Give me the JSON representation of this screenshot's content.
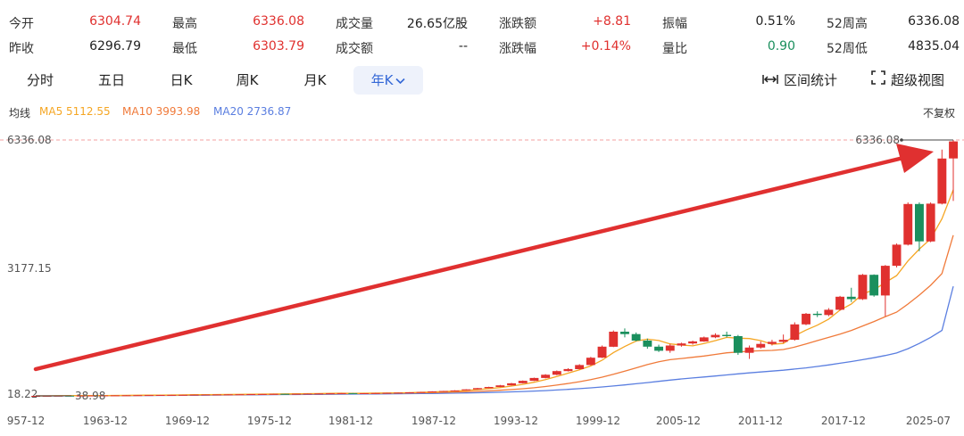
{
  "stats": [
    {
      "label": "今开",
      "value": "6304.74",
      "color": "up"
    },
    {
      "label": "最高",
      "value": "6336.08",
      "color": "up"
    },
    {
      "label": "成交量",
      "value": "26.65亿股",
      "color": "dark"
    },
    {
      "label": "涨跌额",
      "value": "+8.81",
      "color": "up"
    },
    {
      "label": "振幅",
      "value": "0.51%",
      "color": "dark"
    },
    {
      "label": "52周高",
      "value": "6336.08",
      "color": "dark"
    },
    {
      "label": "昨收",
      "value": "6296.79",
      "color": "dark"
    },
    {
      "label": "最低",
      "value": "6303.79",
      "color": "up"
    },
    {
      "label": "成交额",
      "value": "--",
      "color": "dark"
    },
    {
      "label": "涨跌幅",
      "value": "+0.14%",
      "color": "up"
    },
    {
      "label": "量比",
      "value": "0.90",
      "color": "green"
    },
    {
      "label": "52周低",
      "value": "4835.04",
      "color": "dark"
    }
  ],
  "tabs": [
    "分时",
    "五日",
    "日K",
    "周K",
    "月K",
    "年K"
  ],
  "active_tab": "年K",
  "tools": {
    "range_stats": "区间统计",
    "super_view": "超级视图"
  },
  "ma": {
    "label": "均线",
    "ma5": "MA5 5112.55",
    "ma10": "MA10 3993.98",
    "ma20": "MA20 2736.87",
    "adjust": "不复权"
  },
  "colors": {
    "up": "#e0312f",
    "down": "#1a8f5d",
    "ma5": "#f5a623",
    "ma10": "#f07a3a",
    "ma20": "#5a7ee0",
    "arrow": "#e03030",
    "grid_dash": "#f3a0a0"
  },
  "chart_data": {
    "type": "candlestick",
    "y_ticks": [
      "6336.08",
      "3177.15",
      "18.22"
    ],
    "ylim": [
      18.22,
      6336.08
    ],
    "x_ticks": [
      "957-12",
      "1963-12",
      "1969-12",
      "1975-12",
      "1981-12",
      "1987-12",
      "1993-12",
      "1999-12",
      "2005-12",
      "2011-12",
      "2017-12",
      "2025-07"
    ],
    "max_label": "6336.08",
    "min_label": "38.98",
    "candles": [
      {
        "o": 40,
        "c": 41,
        "h": 42,
        "l": 39
      },
      {
        "o": 41,
        "c": 43,
        "h": 44,
        "l": 40
      },
      {
        "o": 43,
        "c": 45,
        "h": 46,
        "l": 42
      },
      {
        "o": 45,
        "c": 44,
        "h": 47,
        "l": 43
      },
      {
        "o": 44,
        "c": 47,
        "h": 48,
        "l": 43
      },
      {
        "o": 47,
        "c": 49,
        "h": 50,
        "l": 46
      },
      {
        "o": 49,
        "c": 51,
        "h": 52,
        "l": 48
      },
      {
        "o": 51,
        "c": 53,
        "h": 54,
        "l": 50
      },
      {
        "o": 53,
        "c": 56,
        "h": 57,
        "l": 52
      },
      {
        "o": 56,
        "c": 58,
        "h": 60,
        "l": 55
      },
      {
        "o": 58,
        "c": 60,
        "h": 61,
        "l": 57
      },
      {
        "o": 60,
        "c": 62,
        "h": 64,
        "l": 59
      },
      {
        "o": 62,
        "c": 65,
        "h": 66,
        "l": 61
      },
      {
        "o": 65,
        "c": 67,
        "h": 69,
        "l": 64
      },
      {
        "o": 67,
        "c": 70,
        "h": 71,
        "l": 66
      },
      {
        "o": 70,
        "c": 72,
        "h": 74,
        "l": 69
      },
      {
        "o": 72,
        "c": 75,
        "h": 76,
        "l": 71
      },
      {
        "o": 75,
        "c": 78,
        "h": 80,
        "l": 74
      },
      {
        "o": 78,
        "c": 80,
        "h": 82,
        "l": 77
      },
      {
        "o": 80,
        "c": 83,
        "h": 85,
        "l": 79
      },
      {
        "o": 83,
        "c": 86,
        "h": 88,
        "l": 82
      },
      {
        "o": 86,
        "c": 90,
        "h": 92,
        "l": 85
      },
      {
        "o": 90,
        "c": 88,
        "h": 93,
        "l": 86
      },
      {
        "o": 88,
        "c": 92,
        "h": 95,
        "l": 87
      },
      {
        "o": 92,
        "c": 96,
        "h": 98,
        "l": 90
      },
      {
        "o": 96,
        "c": 100,
        "h": 102,
        "l": 94
      },
      {
        "o": 100,
        "c": 104,
        "h": 106,
        "l": 98
      },
      {
        "o": 104,
        "c": 108,
        "h": 110,
        "l": 102
      },
      {
        "o": 108,
        "c": 102,
        "h": 112,
        "l": 100
      },
      {
        "o": 102,
        "c": 106,
        "h": 109,
        "l": 100
      },
      {
        "o": 106,
        "c": 110,
        "h": 113,
        "l": 104
      },
      {
        "o": 110,
        "c": 115,
        "h": 118,
        "l": 108
      },
      {
        "o": 115,
        "c": 120,
        "h": 122,
        "l": 113
      },
      {
        "o": 120,
        "c": 128,
        "h": 131,
        "l": 118
      },
      {
        "o": 128,
        "c": 136,
        "h": 140,
        "l": 126
      },
      {
        "o": 136,
        "c": 150,
        "h": 155,
        "l": 134
      },
      {
        "o": 150,
        "c": 160,
        "h": 165,
        "l": 148
      },
      {
        "o": 160,
        "c": 175,
        "h": 180,
        "l": 158
      },
      {
        "o": 175,
        "c": 200,
        "h": 205,
        "l": 172
      },
      {
        "o": 200,
        "c": 230,
        "h": 236,
        "l": 198
      },
      {
        "o": 230,
        "c": 260,
        "h": 266,
        "l": 228
      },
      {
        "o": 260,
        "c": 300,
        "h": 310,
        "l": 255
      },
      {
        "o": 300,
        "c": 350,
        "h": 360,
        "l": 295
      },
      {
        "o": 350,
        "c": 410,
        "h": 420,
        "l": 345
      },
      {
        "o": 410,
        "c": 480,
        "h": 490,
        "l": 405
      },
      {
        "o": 480,
        "c": 560,
        "h": 575,
        "l": 470
      },
      {
        "o": 560,
        "c": 650,
        "h": 665,
        "l": 550
      },
      {
        "o": 650,
        "c": 700,
        "h": 720,
        "l": 640
      },
      {
        "o": 700,
        "c": 800,
        "h": 820,
        "l": 690
      },
      {
        "o": 800,
        "c": 980,
        "h": 1000,
        "l": 790
      },
      {
        "o": 980,
        "c": 1250,
        "h": 1280,
        "l": 970
      },
      {
        "o": 1250,
        "c": 1620,
        "h": 1650,
        "l": 1240
      },
      {
        "o": 1620,
        "c": 1560,
        "h": 1700,
        "l": 1480
      },
      {
        "o": 1560,
        "c": 1400,
        "h": 1600,
        "l": 1380
      },
      {
        "o": 1400,
        "c": 1250,
        "h": 1450,
        "l": 1200
      },
      {
        "o": 1250,
        "c": 1150,
        "h": 1300,
        "l": 1120
      },
      {
        "o": 1150,
        "c": 1280,
        "h": 1320,
        "l": 1100
      },
      {
        "o": 1280,
        "c": 1330,
        "h": 1350,
        "l": 1250
      },
      {
        "o": 1330,
        "c": 1380,
        "h": 1400,
        "l": 1300
      },
      {
        "o": 1380,
        "c": 1480,
        "h": 1500,
        "l": 1370
      },
      {
        "o": 1480,
        "c": 1540,
        "h": 1580,
        "l": 1460
      },
      {
        "o": 1540,
        "c": 1510,
        "h": 1620,
        "l": 1480
      },
      {
        "o": 1510,
        "c": 1100,
        "h": 1540,
        "l": 1050
      },
      {
        "o": 1100,
        "c": 1230,
        "h": 1280,
        "l": 950
      },
      {
        "o": 1230,
        "c": 1320,
        "h": 1380,
        "l": 1200
      },
      {
        "o": 1320,
        "c": 1370,
        "h": 1420,
        "l": 1280
      },
      {
        "o": 1370,
        "c": 1420,
        "h": 1550,
        "l": 1340
      },
      {
        "o": 1420,
        "c": 1800,
        "h": 1850,
        "l": 1400
      },
      {
        "o": 1800,
        "c": 2060,
        "h": 2080,
        "l": 1780
      },
      {
        "o": 2060,
        "c": 2030,
        "h": 2120,
        "l": 1980
      },
      {
        "o": 2030,
        "c": 2160,
        "h": 2200,
        "l": 2000
      },
      {
        "o": 2160,
        "c": 2480,
        "h": 2500,
        "l": 2140
      },
      {
        "o": 2480,
        "c": 2420,
        "h": 2700,
        "l": 2350
      },
      {
        "o": 2420,
        "c": 3020,
        "h": 3040,
        "l": 2400
      },
      {
        "o": 3020,
        "c": 2510,
        "h": 3030,
        "l": 2480
      },
      {
        "o": 2510,
        "c": 3240,
        "h": 3260,
        "l": 2000
      },
      {
        "o": 3240,
        "c": 3760,
        "h": 3790,
        "l": 3200
      },
      {
        "o": 3760,
        "c": 4760,
        "h": 4800,
        "l": 3740
      },
      {
        "o": 4760,
        "c": 3840,
        "h": 4800,
        "l": 3600
      },
      {
        "o": 3840,
        "c": 4770,
        "h": 4800,
        "l": 3820
      },
      {
        "o": 4770,
        "c": 5880,
        "h": 6100,
        "l": 4750
      },
      {
        "o": 5880,
        "c": 6300,
        "h": 6336.08,
        "l": 4835
      }
    ],
    "ma5": [
      40,
      41,
      43,
      44,
      45,
      47,
      49,
      51,
      54,
      56,
      58,
      60,
      63,
      65,
      68,
      70,
      73,
      76,
      78,
      81,
      84,
      87,
      89,
      91,
      94,
      97,
      101,
      105,
      104,
      106,
      108,
      111,
      115,
      120,
      127,
      136,
      146,
      158,
      173,
      193,
      217,
      245,
      281,
      323,
      376,
      440,
      516,
      600,
      680,
      778,
      918,
      1106,
      1256,
      1389,
      1436,
      1403,
      1320,
      1290,
      1270,
      1330,
      1400,
      1480,
      1460,
      1450,
      1400,
      1310,
      1330,
      1520,
      1660,
      1780,
      1930,
      2150,
      2300,
      2550,
      2650,
      2830,
      3000,
      3360,
      3650,
      3900,
      4400,
      5112.55
    ],
    "ma10": [
      40,
      41,
      42,
      43,
      44,
      45,
      47,
      49,
      50,
      52,
      54,
      56,
      58,
      60,
      62,
      64,
      66,
      69,
      71,
      74,
      77,
      80,
      82,
      85,
      88,
      90,
      93,
      96,
      98,
      100,
      102,
      105,
      108,
      112,
      116,
      121,
      127,
      134,
      142,
      152,
      164,
      178,
      195,
      215,
      240,
      270,
      305,
      345,
      390,
      440,
      500,
      570,
      650,
      730,
      810,
      880,
      930,
      960,
      990,
      1020,
      1060,
      1100,
      1120,
      1140,
      1150,
      1160,
      1180,
      1240,
      1320,
      1400,
      1480,
      1560,
      1650,
      1760,
      1870,
      1990,
      2100,
      2300,
      2520,
      2760,
      3050,
      3993.98
    ],
    "ma20": [
      40,
      40,
      41,
      42,
      43,
      44,
      45,
      46,
      47,
      48,
      49,
      51,
      52,
      54,
      56,
      58,
      60,
      62,
      64,
      66,
      68,
      70,
      72,
      74,
      76,
      78,
      80,
      82,
      84,
      86,
      88,
      90,
      92,
      94,
      97,
      100,
      104,
      108,
      113,
      118,
      124,
      131,
      139,
      148,
      158,
      170,
      184,
      200,
      218,
      238,
      260,
      284,
      310,
      338,
      368,
      398,
      428,
      456,
      482,
      506,
      530,
      556,
      582,
      606,
      628,
      650,
      672,
      700,
      730,
      765,
      802,
      842,
      884,
      930,
      980,
      1035,
      1095,
      1200,
      1330,
      1480,
      1650,
      2736.87
    ]
  }
}
